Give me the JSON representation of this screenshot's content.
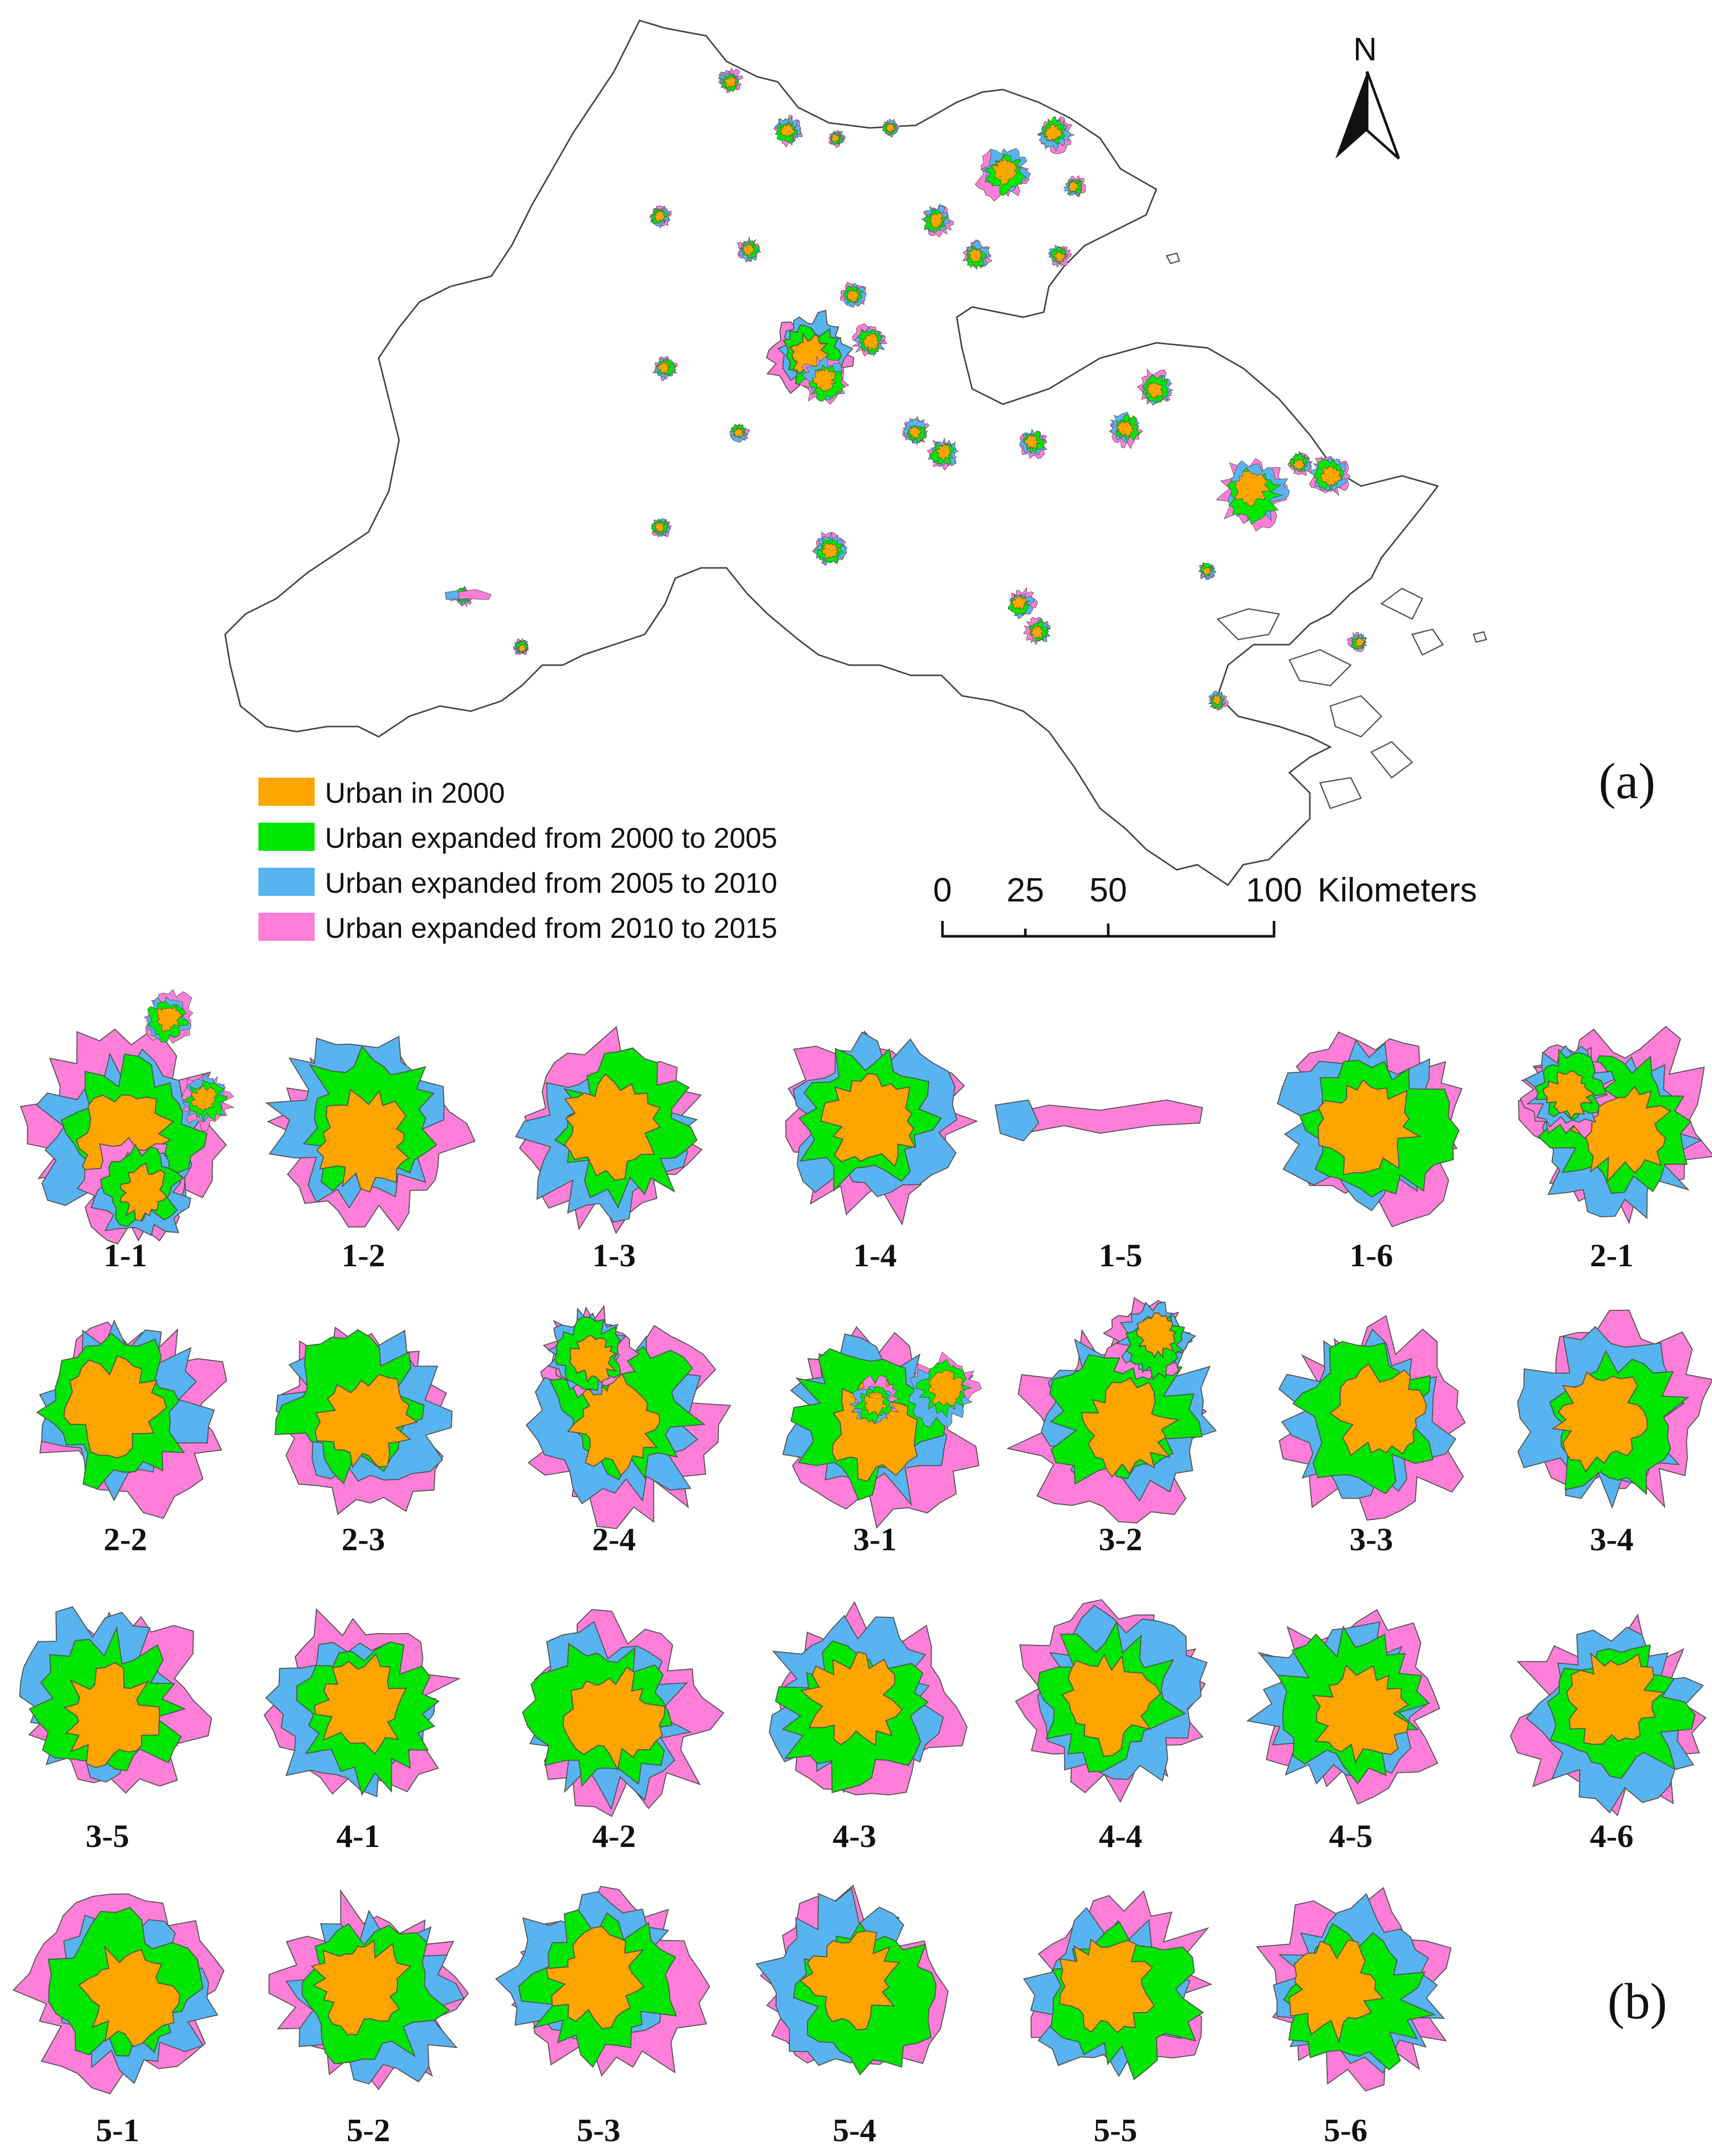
{
  "colors": {
    "urban_2000": "#ffa500",
    "exp_2000_2005": "#00e600",
    "exp_2005_2010": "#58b4f0",
    "exp_2010_2015": "#ff7fd8",
    "outline": "#333333"
  },
  "north_label": "N",
  "panel_a_label": "(a)",
  "panel_b_label": "(b)",
  "legend": [
    {
      "label": "Urban in 2000",
      "color_key": "urban_2000"
    },
    {
      "label": "Urban expanded from 2000 to 2005",
      "color_key": "exp_2000_2005"
    },
    {
      "label": "Urban expanded from 2005 to 2010",
      "color_key": "exp_2005_2010"
    },
    {
      "label": "Urban expanded from 2010 to 2015",
      "color_key": "exp_2010_2015"
    }
  ],
  "scale_bar": {
    "ticks": [
      "0",
      "25",
      "50",
      "100"
    ],
    "unit": "Kilometers"
  },
  "cities": [
    "1-1",
    "1-2",
    "1-3",
    "1-4",
    "1-5",
    "1-6",
    "2-1",
    "2-2",
    "2-3",
    "2-4",
    "3-1",
    "3-2",
    "3-3",
    "3-4",
    "3-5",
    "4-1",
    "4-2",
    "4-3",
    "4-4",
    "4-5",
    "4-6",
    "5-1",
    "5-2",
    "5-3",
    "5-4",
    "5-5",
    "5-6"
  ]
}
